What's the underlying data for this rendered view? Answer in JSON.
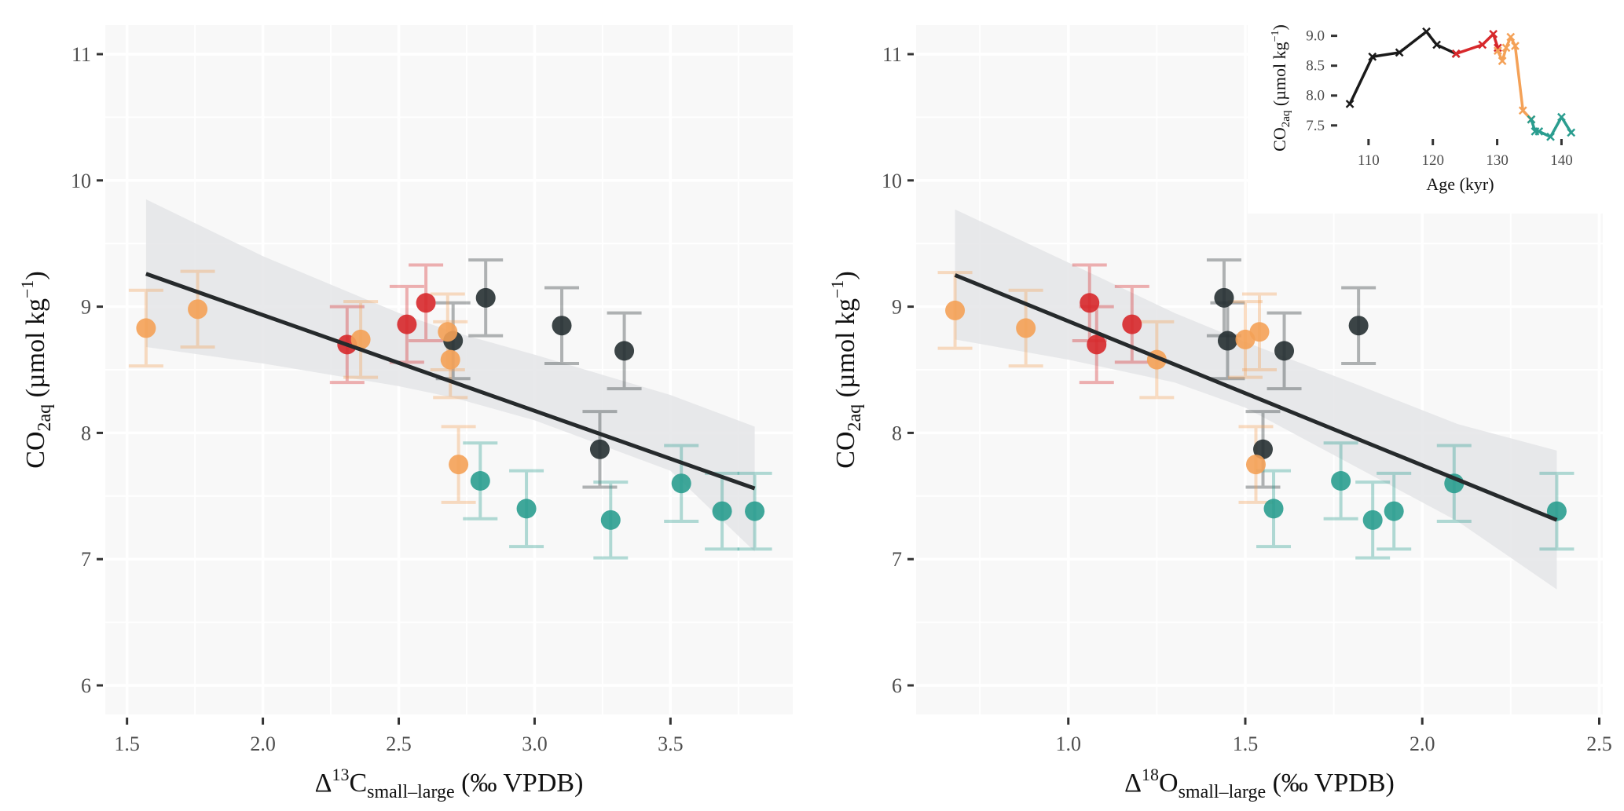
{
  "colors": {
    "panel_bg": "#f8f8f8",
    "grid": "#ffffff",
    "ci_band": "#e4e5e7",
    "fit_line": "#262a2c",
    "tick": "#333333",
    "groups": {
      "black": "#263032",
      "red": "#d7282b",
      "orange": "#f4a157",
      "teal": "#2a9d8f"
    }
  },
  "chart_data": [
    {
      "id": "left",
      "type": "scatter",
      "title": "",
      "xlabel": {
        "main": "Δ",
        "sup": "13",
        "elem": "C",
        "sub": "small–large",
        "rest": " (‰ VPDB)"
      },
      "ylabel": {
        "main": "CO",
        "sub": "2aq",
        "rest": " (µmol kg",
        "sup": "−1",
        "end": ")"
      },
      "xlim": [
        1.42,
        3.95
      ],
      "ylim": [
        5.77,
        11.23
      ],
      "xticks": [
        1.5,
        2.0,
        2.5,
        3.0,
        3.5
      ],
      "xtick_labels": [
        "1.5",
        "2.0",
        "2.5",
        "3.0",
        "3.5"
      ],
      "yticks": [
        6,
        7,
        8,
        9,
        10,
        11
      ],
      "ytick_labels": [
        "6",
        "7",
        "8",
        "9",
        "10",
        "11"
      ],
      "grid": true,
      "error_halfwidth": 0.3,
      "points": [
        {
          "x": 1.57,
          "y": 8.83,
          "group": "orange"
        },
        {
          "x": 1.76,
          "y": 8.98,
          "group": "orange"
        },
        {
          "x": 2.31,
          "y": 8.7,
          "group": "red"
        },
        {
          "x": 2.36,
          "y": 8.74,
          "group": "orange"
        },
        {
          "x": 2.53,
          "y": 8.86,
          "group": "red"
        },
        {
          "x": 2.6,
          "y": 9.03,
          "group": "red"
        },
        {
          "x": 2.7,
          "y": 8.73,
          "group": "black"
        },
        {
          "x": 2.68,
          "y": 8.8,
          "group": "orange"
        },
        {
          "x": 2.69,
          "y": 8.58,
          "group": "orange"
        },
        {
          "x": 2.82,
          "y": 9.07,
          "group": "black"
        },
        {
          "x": 2.72,
          "y": 7.75,
          "group": "orange"
        },
        {
          "x": 2.8,
          "y": 7.62,
          "group": "teal"
        },
        {
          "x": 2.97,
          "y": 7.4,
          "group": "teal"
        },
        {
          "x": 3.1,
          "y": 8.85,
          "group": "black"
        },
        {
          "x": 3.33,
          "y": 8.65,
          "group": "black"
        },
        {
          "x": 3.24,
          "y": 7.87,
          "group": "black"
        },
        {
          "x": 3.28,
          "y": 7.31,
          "group": "teal"
        },
        {
          "x": 3.54,
          "y": 7.6,
          "group": "teal"
        },
        {
          "x": 3.69,
          "y": 7.38,
          "group": "teal"
        },
        {
          "x": 3.81,
          "y": 7.38,
          "group": "teal"
        }
      ],
      "fit": {
        "x": [
          1.57,
          3.81
        ],
        "y": [
          9.26,
          7.56
        ]
      },
      "ci": {
        "x": [
          1.57,
          2.0,
          2.5,
          2.7,
          3.0,
          3.5,
          3.81
        ],
        "upper": [
          9.85,
          9.4,
          8.95,
          8.8,
          8.62,
          8.3,
          8.05
        ],
        "lower": [
          8.68,
          8.55,
          8.37,
          8.28,
          8.1,
          7.7,
          7.06
        ]
      }
    },
    {
      "id": "right",
      "type": "scatter",
      "title": "",
      "xlabel": {
        "main": "Δ",
        "sup": "18",
        "elem": "O",
        "sub": "small–large",
        "rest": " (‰ VPDB)"
      },
      "ylabel": {
        "main": "CO",
        "sub": "2aq",
        "rest": " (µmol kg",
        "sup": "−1",
        "end": ")"
      },
      "xlim": [
        0.57,
        2.51
      ],
      "ylim": [
        5.77,
        11.23
      ],
      "xticks": [
        1.0,
        1.5,
        2.0,
        2.5
      ],
      "xtick_labels": [
        "1.0",
        "1.5",
        "2.0",
        "2.5"
      ],
      "yticks": [
        6,
        7,
        8,
        9,
        10,
        11
      ],
      "ytick_labels": [
        "6",
        "7",
        "8",
        "9",
        "10",
        "11"
      ],
      "grid": true,
      "error_halfwidth": 0.3,
      "points": [
        {
          "x": 0.68,
          "y": 8.97,
          "group": "orange"
        },
        {
          "x": 0.88,
          "y": 8.83,
          "group": "orange"
        },
        {
          "x": 1.06,
          "y": 9.03,
          "group": "red"
        },
        {
          "x": 1.08,
          "y": 8.7,
          "group": "red"
        },
        {
          "x": 1.18,
          "y": 8.86,
          "group": "red"
        },
        {
          "x": 1.25,
          "y": 8.58,
          "group": "orange"
        },
        {
          "x": 1.44,
          "y": 9.07,
          "group": "black"
        },
        {
          "x": 1.45,
          "y": 8.73,
          "group": "black"
        },
        {
          "x": 1.5,
          "y": 8.74,
          "group": "orange"
        },
        {
          "x": 1.54,
          "y": 8.8,
          "group": "orange"
        },
        {
          "x": 1.61,
          "y": 8.65,
          "group": "black"
        },
        {
          "x": 1.55,
          "y": 7.87,
          "group": "black"
        },
        {
          "x": 1.53,
          "y": 7.75,
          "group": "orange"
        },
        {
          "x": 1.58,
          "y": 7.4,
          "group": "teal"
        },
        {
          "x": 1.82,
          "y": 8.85,
          "group": "black"
        },
        {
          "x": 1.77,
          "y": 7.62,
          "group": "teal"
        },
        {
          "x": 1.86,
          "y": 7.31,
          "group": "teal"
        },
        {
          "x": 1.92,
          "y": 7.38,
          "group": "teal"
        },
        {
          "x": 2.09,
          "y": 7.6,
          "group": "teal"
        },
        {
          "x": 2.38,
          "y": 7.38,
          "group": "teal"
        }
      ],
      "fit": {
        "x": [
          0.68,
          2.38
        ],
        "y": [
          9.25,
          7.31
        ]
      },
      "ci": {
        "x": [
          0.68,
          1.0,
          1.3,
          1.5,
          1.8,
          2.1,
          2.38
        ],
        "upper": [
          9.77,
          9.35,
          8.95,
          8.72,
          8.4,
          8.07,
          7.86
        ],
        "lower": [
          8.74,
          8.58,
          8.4,
          8.2,
          7.75,
          7.3,
          6.76
        ]
      }
    },
    {
      "id": "inset",
      "type": "line",
      "title": "",
      "xlabel": "Age (kyr)",
      "ylabel": {
        "main": "CO",
        "sub": "2aq",
        "rest": " (µmol kg",
        "sup": "−1",
        "end": ")"
      },
      "xlim": [
        105.5,
        143
      ],
      "ylim": [
        7.3,
        9.1
      ],
      "xticks": [
        110,
        120,
        130,
        140
      ],
      "xtick_labels": [
        "110",
        "120",
        "130",
        "140"
      ],
      "yticks": [
        7.5,
        8.0,
        8.5,
        9.0
      ],
      "ytick_labels": [
        "7.5",
        "8.0",
        "8.5",
        "9.0"
      ],
      "grid": false,
      "marker": "x",
      "series": [
        {
          "name": "black",
          "x": [
            107.1,
            110.6,
            114.8,
            119.0,
            120.6,
            123.6
          ],
          "y": [
            7.86,
            8.65,
            8.72,
            9.07,
            8.85,
            8.7
          ]
        },
        {
          "name": "red",
          "x": [
            123.6,
            127.7,
            129.4,
            130.1
          ],
          "y": [
            8.7,
            8.85,
            9.03,
            8.8
          ]
        },
        {
          "name": "orange",
          "x": [
            130.1,
            130.8,
            131.4,
            132.1,
            132.8,
            134.0,
            135.3
          ],
          "y": [
            8.75,
            8.58,
            8.8,
            8.98,
            8.83,
            7.75,
            7.6
          ]
        },
        {
          "name": "teal",
          "x": [
            135.3,
            135.9,
            136.5,
            138.3,
            140.0,
            141.5
          ],
          "y": [
            7.6,
            7.4,
            7.4,
            7.31,
            7.64,
            7.38
          ]
        }
      ]
    }
  ]
}
